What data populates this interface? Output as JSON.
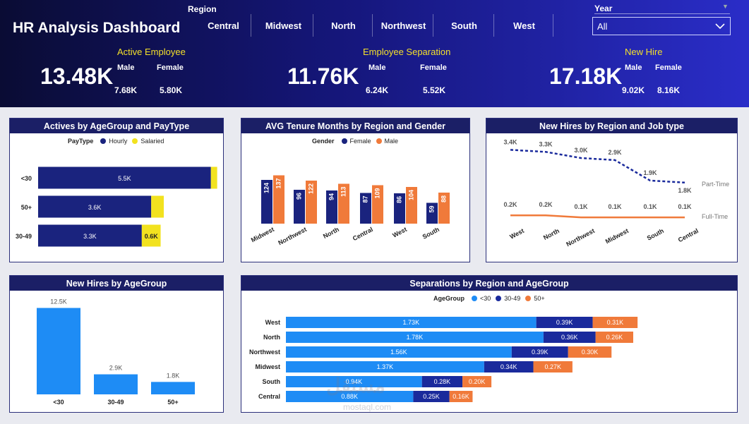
{
  "header": {
    "title": "HR Analysis Dashboard",
    "region_label": "Region",
    "regions": [
      "Central",
      "Midwest",
      "North",
      "Northwest",
      "South",
      "West"
    ],
    "year_label": "Year",
    "year_value": "All",
    "kpis": [
      {
        "title": "Active Employee",
        "value": "13.48K",
        "male_label": "Male",
        "female_label": "Female",
        "male": "7.68K",
        "female": "5.80K"
      },
      {
        "title": "Employee Separation",
        "value": "11.76K",
        "male_label": "Male",
        "female_label": "Female",
        "male": "6.24K",
        "female": "5.52K"
      },
      {
        "title": "New Hire",
        "value": "17.18K",
        "male_label": "Male",
        "female_label": "Female",
        "male": "9.02K",
        "female": "8.16K"
      }
    ]
  },
  "colors": {
    "navy": "#1a237e",
    "yellow": "#f2e21f",
    "orange": "#f07a3a",
    "lightblue": "#1e8cf5",
    "midblue": "#1a2a9c"
  },
  "chart_data": [
    {
      "id": "actives",
      "type": "bar",
      "title": "Actives by AgeGroup and PayType",
      "legend_title": "PayType",
      "categories": [
        "<30",
        "50+",
        "30-49"
      ],
      "series": [
        {
          "name": "Hourly",
          "values": [
            5.5,
            3.6,
            3.3
          ],
          "labels": [
            "5.5K",
            "3.6K",
            "3.3K"
          ]
        },
        {
          "name": "Salaried",
          "values": [
            0.2,
            0.4,
            0.6
          ],
          "labels": [
            "",
            "",
            "0.6K"
          ]
        }
      ]
    },
    {
      "id": "tenure",
      "type": "bar",
      "title": "AVG Tenure Months by Region and Gender",
      "legend_title": "Gender",
      "categories": [
        "Midwest",
        "Northwest",
        "North",
        "Central",
        "West",
        "South"
      ],
      "series": [
        {
          "name": "Female",
          "values": [
            124,
            96,
            94,
            87,
            86,
            59
          ]
        },
        {
          "name": "Male",
          "values": [
            137,
            122,
            113,
            109,
            104,
            88
          ]
        }
      ]
    },
    {
      "id": "newhires_job",
      "type": "line",
      "title": "New Hires by Region and Job type",
      "categories": [
        "West",
        "North",
        "Northwest",
        "Midwest",
        "South",
        "Central"
      ],
      "series": [
        {
          "name": "Part-Time",
          "values": [
            3.4,
            3.3,
            3.0,
            2.9,
            1.9,
            1.8
          ],
          "labels": [
            "3.4K",
            "3.3K",
            "3.0K",
            "2.9K",
            "1.9K",
            "1.8K"
          ]
        },
        {
          "name": "Full-Time",
          "values": [
            0.2,
            0.2,
            0.1,
            0.1,
            0.1,
            0.1
          ],
          "labels": [
            "0.2K",
            "0.2K",
            "0.1K",
            "0.1K",
            "0.1K",
            "0.1K"
          ]
        }
      ]
    },
    {
      "id": "newhires_age",
      "type": "bar",
      "title": "New Hires by AgeGroup",
      "categories": [
        "<30",
        "30-49",
        "50+"
      ],
      "values": [
        12.5,
        2.9,
        1.8
      ],
      "labels": [
        "12.5K",
        "2.9K",
        "1.8K"
      ]
    },
    {
      "id": "separations",
      "type": "bar",
      "title": "Separations by Region and AgeGroup",
      "legend_title": "AgeGroup",
      "categories": [
        "West",
        "North",
        "Northwest",
        "Midwest",
        "South",
        "Central"
      ],
      "series": [
        {
          "name": "<30",
          "values": [
            1.73,
            1.78,
            1.56,
            1.37,
            0.94,
            0.88
          ],
          "labels": [
            "1.73K",
            "1.78K",
            "1.56K",
            "1.37K",
            "0.94K",
            "0.88K"
          ]
        },
        {
          "name": "30-49",
          "values": [
            0.39,
            0.36,
            0.39,
            0.34,
            0.28,
            0.25
          ],
          "labels": [
            "0.39K",
            "0.36K",
            "0.39K",
            "0.34K",
            "0.28K",
            "0.25K"
          ]
        },
        {
          "name": "50+",
          "values": [
            0.31,
            0.26,
            0.3,
            0.27,
            0.2,
            0.16
          ],
          "labels": [
            "0.31K",
            "0.26K",
            "0.30K",
            "0.27K",
            "0.20K",
            "0.16K"
          ]
        }
      ]
    }
  ],
  "watermark": {
    "text": "مستقل",
    "sub": "mostaql.com"
  }
}
